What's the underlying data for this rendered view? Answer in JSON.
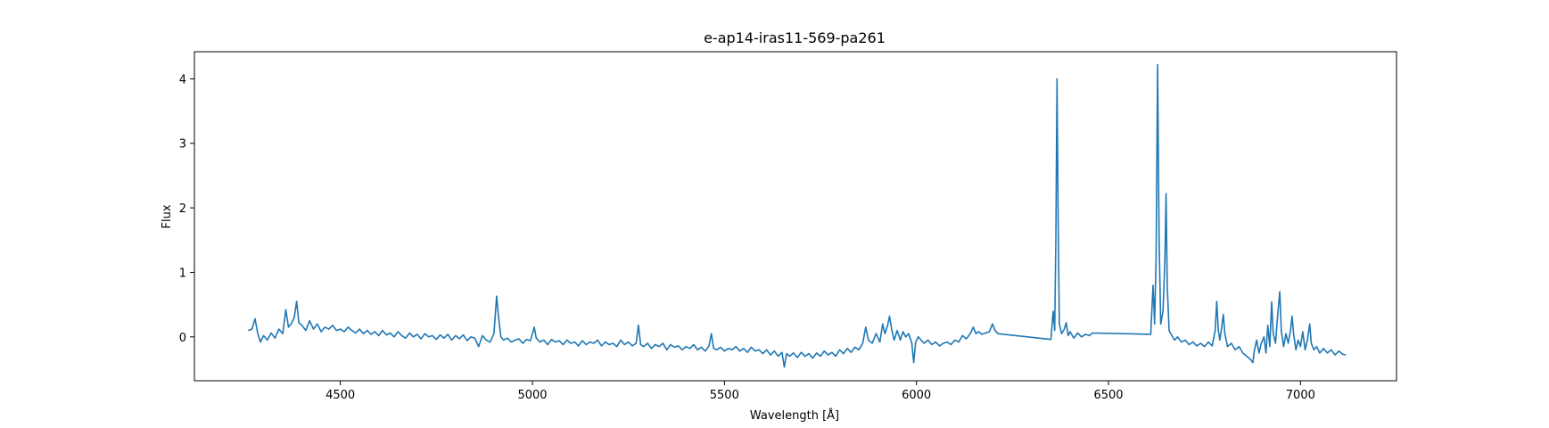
{
  "chart_data": {
    "type": "line",
    "title": "e-ap14-iras11-569-pa261",
    "xlabel": "Wavelength [Å]",
    "ylabel": "Flux",
    "xlim": [
      4120,
      7250
    ],
    "ylim": [
      -0.68,
      4.42
    ],
    "xticks": [
      4500,
      5000,
      5500,
      6000,
      6500,
      7000
    ],
    "yticks": [
      0,
      1,
      2,
      3,
      4
    ],
    "grid": false,
    "series": [
      {
        "name": "",
        "color": "#1f77b4",
        "points": [
          [
            4260,
            0.1
          ],
          [
            4270,
            0.12
          ],
          [
            4278,
            0.28
          ],
          [
            4285,
            0.05
          ],
          [
            4292,
            -0.08
          ],
          [
            4300,
            0.02
          ],
          [
            4310,
            -0.05
          ],
          [
            4320,
            0.06
          ],
          [
            4330,
            -0.02
          ],
          [
            4340,
            0.12
          ],
          [
            4350,
            0.05
          ],
          [
            4358,
            0.42
          ],
          [
            4365,
            0.15
          ],
          [
            4372,
            0.2
          ],
          [
            4380,
            0.3
          ],
          [
            4386,
            0.55
          ],
          [
            4392,
            0.22
          ],
          [
            4400,
            0.18
          ],
          [
            4410,
            0.1
          ],
          [
            4420,
            0.25
          ],
          [
            4430,
            0.12
          ],
          [
            4440,
            0.2
          ],
          [
            4450,
            0.08
          ],
          [
            4460,
            0.15
          ],
          [
            4470,
            0.12
          ],
          [
            4480,
            0.18
          ],
          [
            4490,
            0.1
          ],
          [
            4500,
            0.12
          ],
          [
            4510,
            0.08
          ],
          [
            4520,
            0.15
          ],
          [
            4530,
            0.1
          ],
          [
            4540,
            0.06
          ],
          [
            4550,
            0.12
          ],
          [
            4560,
            0.05
          ],
          [
            4570,
            0.1
          ],
          [
            4580,
            0.04
          ],
          [
            4590,
            0.08
          ],
          [
            4600,
            0.02
          ],
          [
            4610,
            0.1
          ],
          [
            4620,
            0.03
          ],
          [
            4630,
            0.06
          ],
          [
            4640,
            0.0
          ],
          [
            4650,
            0.08
          ],
          [
            4660,
            0.02
          ],
          [
            4670,
            -0.02
          ],
          [
            4680,
            0.06
          ],
          [
            4690,
            0.0
          ],
          [
            4700,
            0.04
          ],
          [
            4710,
            -0.03
          ],
          [
            4720,
            0.05
          ],
          [
            4730,
            0.0
          ],
          [
            4740,
            0.02
          ],
          [
            4750,
            -0.04
          ],
          [
            4760,
            0.03
          ],
          [
            4770,
            -0.02
          ],
          [
            4780,
            0.04
          ],
          [
            4790,
            -0.05
          ],
          [
            4800,
            0.02
          ],
          [
            4810,
            -0.03
          ],
          [
            4820,
            0.03
          ],
          [
            4830,
            -0.06
          ],
          [
            4840,
            0.0
          ],
          [
            4850,
            -0.02
          ],
          [
            4860,
            -0.15
          ],
          [
            4870,
            0.02
          ],
          [
            4880,
            -0.05
          ],
          [
            4890,
            -0.08
          ],
          [
            4900,
            0.05
          ],
          [
            4907,
            0.63
          ],
          [
            4912,
            0.3
          ],
          [
            4918,
            0.0
          ],
          [
            4925,
            -0.05
          ],
          [
            4935,
            -0.02
          ],
          [
            4945,
            -0.08
          ],
          [
            4955,
            -0.05
          ],
          [
            4965,
            -0.03
          ],
          [
            4975,
            -0.1
          ],
          [
            4985,
            -0.04
          ],
          [
            4995,
            -0.06
          ],
          [
            5005,
            0.15
          ],
          [
            5010,
            -0.02
          ],
          [
            5020,
            -0.08
          ],
          [
            5030,
            -0.05
          ],
          [
            5040,
            -0.12
          ],
          [
            5050,
            -0.04
          ],
          [
            5060,
            -0.08
          ],
          [
            5070,
            -0.06
          ],
          [
            5080,
            -0.12
          ],
          [
            5090,
            -0.05
          ],
          [
            5100,
            -0.1
          ],
          [
            5110,
            -0.08
          ],
          [
            5120,
            -0.14
          ],
          [
            5130,
            -0.06
          ],
          [
            5140,
            -0.12
          ],
          [
            5150,
            -0.08
          ],
          [
            5160,
            -0.1
          ],
          [
            5170,
            -0.05
          ],
          [
            5180,
            -0.14
          ],
          [
            5190,
            -0.08
          ],
          [
            5200,
            -0.12
          ],
          [
            5210,
            -0.1
          ],
          [
            5220,
            -0.15
          ],
          [
            5230,
            -0.05
          ],
          [
            5240,
            -0.12
          ],
          [
            5250,
            -0.08
          ],
          [
            5260,
            -0.14
          ],
          [
            5270,
            -0.1
          ],
          [
            5276,
            0.18
          ],
          [
            5282,
            -0.12
          ],
          [
            5290,
            -0.15
          ],
          [
            5300,
            -0.1
          ],
          [
            5310,
            -0.18
          ],
          [
            5320,
            -0.12
          ],
          [
            5330,
            -0.15
          ],
          [
            5340,
            -0.1
          ],
          [
            5350,
            -0.2
          ],
          [
            5360,
            -0.12
          ],
          [
            5370,
            -0.16
          ],
          [
            5380,
            -0.14
          ],
          [
            5390,
            -0.2
          ],
          [
            5400,
            -0.15
          ],
          [
            5410,
            -0.18
          ],
          [
            5420,
            -0.12
          ],
          [
            5430,
            -0.2
          ],
          [
            5440,
            -0.16
          ],
          [
            5450,
            -0.22
          ],
          [
            5460,
            -0.14
          ],
          [
            5466,
            0.05
          ],
          [
            5472,
            -0.18
          ],
          [
            5480,
            -0.2
          ],
          [
            5490,
            -0.16
          ],
          [
            5500,
            -0.22
          ],
          [
            5510,
            -0.18
          ],
          [
            5520,
            -0.2
          ],
          [
            5530,
            -0.15
          ],
          [
            5540,
            -0.22
          ],
          [
            5550,
            -0.18
          ],
          [
            5560,
            -0.24
          ],
          [
            5570,
            -0.16
          ],
          [
            5580,
            -0.22
          ],
          [
            5590,
            -0.2
          ],
          [
            5600,
            -0.26
          ],
          [
            5610,
            -0.2
          ],
          [
            5620,
            -0.28
          ],
          [
            5630,
            -0.22
          ],
          [
            5640,
            -0.3
          ],
          [
            5650,
            -0.24
          ],
          [
            5656,
            -0.47
          ],
          [
            5662,
            -0.26
          ],
          [
            5670,
            -0.3
          ],
          [
            5680,
            -0.25
          ],
          [
            5690,
            -0.32
          ],
          [
            5700,
            -0.24
          ],
          [
            5710,
            -0.3
          ],
          [
            5720,
            -0.26
          ],
          [
            5730,
            -0.33
          ],
          [
            5740,
            -0.25
          ],
          [
            5750,
            -0.3
          ],
          [
            5760,
            -0.22
          ],
          [
            5770,
            -0.28
          ],
          [
            5780,
            -0.24
          ],
          [
            5790,
            -0.3
          ],
          [
            5800,
            -0.2
          ],
          [
            5810,
            -0.26
          ],
          [
            5820,
            -0.18
          ],
          [
            5830,
            -0.24
          ],
          [
            5840,
            -0.16
          ],
          [
            5850,
            -0.2
          ],
          [
            5860,
            -0.1
          ],
          [
            5868,
            0.15
          ],
          [
            5875,
            -0.05
          ],
          [
            5885,
            -0.1
          ],
          [
            5895,
            0.05
          ],
          [
            5905,
            -0.08
          ],
          [
            5912,
            0.2
          ],
          [
            5918,
            0.05
          ],
          [
            5925,
            0.18
          ],
          [
            5930,
            0.32
          ],
          [
            5936,
            0.1
          ],
          [
            5942,
            -0.05
          ],
          [
            5950,
            0.1
          ],
          [
            5958,
            -0.05
          ],
          [
            5965,
            0.08
          ],
          [
            5972,
            0.0
          ],
          [
            5980,
            0.05
          ],
          [
            5988,
            -0.1
          ],
          [
            5993,
            -0.4
          ],
          [
            5998,
            -0.08
          ],
          [
            6005,
            0.0
          ],
          [
            6012,
            -0.05
          ],
          [
            6020,
            -0.1
          ],
          [
            6030,
            -0.05
          ],
          [
            6040,
            -0.12
          ],
          [
            6050,
            -0.08
          ],
          [
            6060,
            -0.14
          ],
          [
            6070,
            -0.1
          ],
          [
            6080,
            -0.08
          ],
          [
            6090,
            -0.12
          ],
          [
            6100,
            -0.05
          ],
          [
            6110,
            -0.08
          ],
          [
            6120,
            0.02
          ],
          [
            6130,
            -0.03
          ],
          [
            6140,
            0.05
          ],
          [
            6148,
            0.15
          ],
          [
            6155,
            0.05
          ],
          [
            6162,
            0.08
          ],
          [
            6170,
            0.04
          ],
          [
            6180,
            0.06
          ],
          [
            6190,
            0.08
          ],
          [
            6198,
            0.2
          ],
          [
            6205,
            0.1
          ],
          [
            6212,
            0.05
          ],
          [
            6350,
            -0.04
          ],
          [
            6356,
            0.4
          ],
          [
            6360,
            0.1
          ],
          [
            6363,
            1.5
          ],
          [
            6366,
            4.0
          ],
          [
            6369,
            1.8
          ],
          [
            6372,
            0.2
          ],
          [
            6378,
            0.05
          ],
          [
            6385,
            0.12
          ],
          [
            6390,
            0.22
          ],
          [
            6395,
            0.02
          ],
          [
            6400,
            0.08
          ],
          [
            6410,
            -0.02
          ],
          [
            6420,
            0.06
          ],
          [
            6430,
            0.0
          ],
          [
            6440,
            0.04
          ],
          [
            6450,
            0.02
          ],
          [
            6458,
            0.06
          ],
          [
            6610,
            0.04
          ],
          [
            6616,
            0.8
          ],
          [
            6620,
            0.2
          ],
          [
            6624,
            1.2
          ],
          [
            6628,
            4.22
          ],
          [
            6632,
            1.5
          ],
          [
            6636,
            0.2
          ],
          [
            6642,
            0.4
          ],
          [
            6647,
            1.2
          ],
          [
            6650,
            2.22
          ],
          [
            6653,
            0.8
          ],
          [
            6658,
            0.1
          ],
          [
            6665,
            0.02
          ],
          [
            6672,
            -0.05
          ],
          [
            6680,
            0.0
          ],
          [
            6690,
            -0.08
          ],
          [
            6700,
            -0.05
          ],
          [
            6710,
            -0.12
          ],
          [
            6720,
            -0.08
          ],
          [
            6730,
            -0.14
          ],
          [
            6740,
            -0.1
          ],
          [
            6750,
            -0.15
          ],
          [
            6760,
            -0.08
          ],
          [
            6770,
            -0.14
          ],
          [
            6778,
            0.1
          ],
          [
            6782,
            0.55
          ],
          [
            6786,
            0.1
          ],
          [
            6790,
            -0.05
          ],
          [
            6795,
            0.15
          ],
          [
            6799,
            0.35
          ],
          [
            6803,
            0.05
          ],
          [
            6810,
            -0.15
          ],
          [
            6820,
            -0.1
          ],
          [
            6830,
            -0.2
          ],
          [
            6840,
            -0.15
          ],
          [
            6850,
            -0.25
          ],
          [
            6860,
            -0.3
          ],
          [
            6870,
            -0.35
          ],
          [
            6876,
            -0.4
          ],
          [
            6880,
            -0.2
          ],
          [
            6886,
            -0.05
          ],
          [
            6892,
            -0.25
          ],
          [
            6898,
            -0.1
          ],
          [
            6905,
            0.0
          ],
          [
            6910,
            -0.25
          ],
          [
            6915,
            0.18
          ],
          [
            6920,
            -0.15
          ],
          [
            6925,
            0.54
          ],
          [
            6929,
            0.05
          ],
          [
            6935,
            -0.1
          ],
          [
            6940,
            0.3
          ],
          [
            6946,
            0.7
          ],
          [
            6950,
            0.1
          ],
          [
            6956,
            -0.15
          ],
          [
            6962,
            0.05
          ],
          [
            6968,
            -0.1
          ],
          [
            6974,
            0.1
          ],
          [
            6978,
            0.32
          ],
          [
            6982,
            0.05
          ],
          [
            6988,
            -0.2
          ],
          [
            6994,
            -0.05
          ],
          [
            7000,
            -0.15
          ],
          [
            7006,
            0.08
          ],
          [
            7012,
            -0.2
          ],
          [
            7018,
            -0.05
          ],
          [
            7024,
            0.2
          ],
          [
            7028,
            -0.1
          ],
          [
            7035,
            -0.2
          ],
          [
            7042,
            -0.15
          ],
          [
            7050,
            -0.25
          ],
          [
            7060,
            -0.18
          ],
          [
            7070,
            -0.25
          ],
          [
            7080,
            -0.2
          ],
          [
            7090,
            -0.28
          ],
          [
            7100,
            -0.22
          ],
          [
            7110,
            -0.27
          ],
          [
            7118,
            -0.28
          ]
        ]
      }
    ]
  }
}
